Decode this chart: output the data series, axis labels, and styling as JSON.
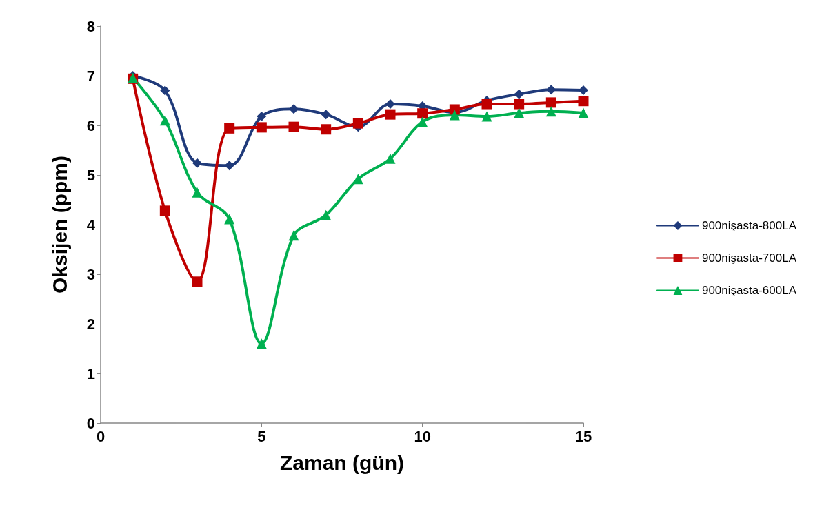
{
  "chart_data": {
    "type": "line",
    "xlabel": "Zaman (gün)",
    "ylabel": "Oksijen (ppm)",
    "x": [
      1,
      2,
      3,
      4,
      5,
      6,
      7,
      8,
      9,
      10,
      11,
      12,
      13,
      14,
      15
    ],
    "xlim": [
      0,
      15
    ],
    "xticks": [
      0,
      5,
      10,
      15
    ],
    "ylim": [
      0,
      8
    ],
    "yticks": [
      0,
      1,
      2,
      3,
      4,
      5,
      6,
      7,
      8
    ],
    "grid": false,
    "legend": "right",
    "line_style": "solid",
    "series": [
      {
        "name": "900nişasta-800LA",
        "color": "#1f3a7a",
        "marker": "diamond",
        "values": [
          7.0,
          6.7,
          5.24,
          5.19,
          6.18,
          6.33,
          6.22,
          5.97,
          6.43,
          6.39,
          6.26,
          6.5,
          6.63,
          6.72,
          6.71
        ]
      },
      {
        "name": "900nişasta-700LA",
        "color": "#c00000",
        "marker": "square",
        "values": [
          6.94,
          4.28,
          2.85,
          5.94,
          5.96,
          5.97,
          5.92,
          6.04,
          6.22,
          6.24,
          6.32,
          6.43,
          6.43,
          6.46,
          6.49
        ]
      },
      {
        "name": "900nişasta-600LA",
        "color": "#00b050",
        "marker": "triangle",
        "values": [
          6.96,
          6.1,
          4.65,
          4.11,
          1.6,
          3.78,
          4.19,
          4.92,
          5.33,
          6.07,
          6.21,
          6.18,
          6.25,
          6.28,
          6.25
        ]
      }
    ]
  }
}
